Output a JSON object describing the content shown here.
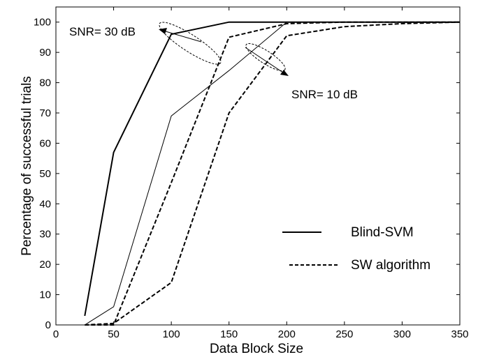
{
  "chart_data": {
    "type": "line",
    "title": "",
    "xlabel": "Data Block Size",
    "ylabel": "Percentage of successful trials",
    "xlim": [
      0,
      350
    ],
    "ylim": [
      0,
      105
    ],
    "xticks": [
      0,
      50,
      100,
      150,
      200,
      250,
      300,
      350
    ],
    "yticks": [
      0,
      10,
      20,
      30,
      40,
      50,
      60,
      70,
      80,
      90,
      100
    ],
    "grid": false,
    "legend_position": "bottom-right",
    "legend": [
      {
        "label": "Blind-SVM",
        "style": "solid"
      },
      {
        "label": "SW algorithm",
        "style": "dashed"
      }
    ],
    "series": [
      {
        "legend_label": "Blind-SVM",
        "snr": "SNR= 30 dB",
        "style": "solid",
        "weight": "thick",
        "x": [
          25,
          50,
          100,
          150,
          200,
          250,
          300,
          350
        ],
        "y": [
          3,
          57,
          96,
          100,
          100,
          100,
          100,
          100
        ]
      },
      {
        "legend_label": "Blind-SVM",
        "snr": "SNR= 10 dB",
        "style": "solid",
        "weight": "thin",
        "x": [
          25,
          50,
          100,
          150,
          200,
          250,
          300,
          350
        ],
        "y": [
          0,
          6,
          69,
          84,
          100,
          100,
          100,
          100
        ]
      },
      {
        "legend_label": "SW algorithm",
        "snr": "SNR= 30 dB",
        "style": "dashed",
        "weight": "thick",
        "x": [
          25,
          50,
          100,
          150,
          200,
          250,
          300,
          350
        ],
        "y": [
          0,
          0,
          47,
          95,
          99.5,
          100,
          100,
          100
        ]
      },
      {
        "legend_label": "SW algorithm",
        "snr": "SNR= 10 dB",
        "style": "dashed",
        "weight": "thick",
        "x": [
          25,
          50,
          100,
          150,
          200,
          250,
          300,
          350
        ],
        "y": [
          0,
          0.5,
          14,
          70,
          95.5,
          98.5,
          99.5,
          100
        ]
      }
    ],
    "annotations": [
      {
        "text": "SNR= 30 dB"
      },
      {
        "text": "SNR= 10 dB"
      }
    ]
  }
}
